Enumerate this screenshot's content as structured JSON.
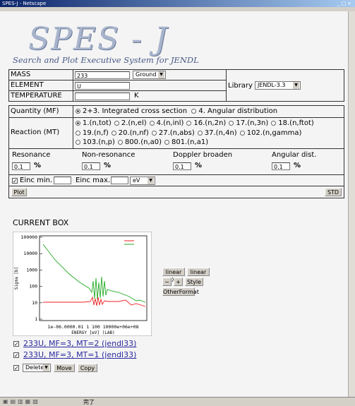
{
  "window": {
    "title": "SPES-J - Netscape",
    "status": "完了"
  },
  "logo": {
    "title": "SPES - J",
    "subtitle": "Search and Plot Executive System for JENDL"
  },
  "form": {
    "mass": {
      "label": "MASS",
      "value": "233",
      "state": "Ground"
    },
    "element": {
      "label": "ELEMENT",
      "value": "U"
    },
    "temperature": {
      "label": "TEMPERATURE",
      "unit": "K"
    },
    "library": {
      "label": "Library",
      "value": "JENDL-3.3"
    },
    "quantity": {
      "label": "Quantity (MF)",
      "options": [
        "2+3. Integrated cross section",
        "4. Angular distribution"
      ]
    },
    "reaction": {
      "label": "Reaction (MT)",
      "options": [
        "1.(n,tot)",
        "2.(n,el)",
        "4.(n,inl)",
        "16.(n,2n)",
        "17.(n,3n)",
        "18.(n,ftot)",
        "19.(n,f)",
        "20.(n,nf)",
        "27.(n,abs)",
        "37.(n,4n)",
        "102.(n,gamma)",
        "103.(n,p)",
        "800.(n,a0)",
        "801.(n,a1)"
      ]
    },
    "tolerances": [
      {
        "label": "Resonance",
        "value": "0.1",
        "unit": "%"
      },
      {
        "label": "Non-resonance",
        "value": "0.1",
        "unit": "%"
      },
      {
        "label": "Doppler broaden",
        "value": "0.1",
        "unit": "%"
      },
      {
        "label": "Angular dist.",
        "value": "0.1",
        "unit": "%"
      }
    ],
    "einc": {
      "min_label": "Einc min.",
      "max_label": "Einc max.",
      "unit": "eV"
    },
    "buttons": {
      "plot": "Plot",
      "std": "STD"
    }
  },
  "current_box": {
    "heading": "CURRENT BOX",
    "plot": {
      "y_label": "Sigma [b]",
      "x_label": "ENERGY [eV] (LAB)",
      "yticks": [
        "100000",
        "10000",
        "1000",
        "100",
        "10",
        "1"
      ],
      "xticks": "1e-06.0000.01  1  100 10000e+06e+08"
    },
    "plot_buttons": [
      "linear X",
      "linear Y",
      "−",
      "+",
      "Style",
      "OtherFormat"
    ],
    "entries": [
      "233U, MF=3, MT=2 (jendl33)",
      "233U, MF=3, MT=1 (jendl33)"
    ],
    "actions": {
      "select": "Delete",
      "move": "Move",
      "copy": "Copy"
    }
  }
}
